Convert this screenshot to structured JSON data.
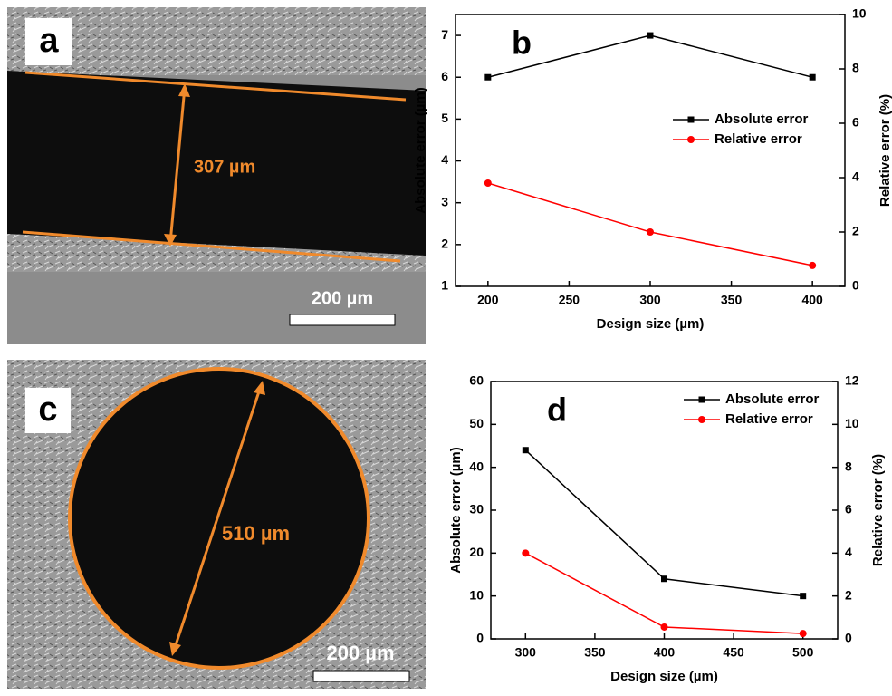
{
  "images": [
    {
      "label": "a",
      "measurement": "307 µm",
      "scale_bar": "200 µm"
    },
    {
      "label": "c",
      "measurement": "510 µm",
      "scale_bar": "200 µm"
    }
  ],
  "chart_data": [
    {
      "type": "line",
      "panel_label": "b",
      "x_label": "Design size (µm)",
      "y_label": "Absolute error (µm)",
      "y2_label": "Relative error (%)",
      "x": [
        200,
        300,
        400
      ],
      "xlim": [
        180,
        420
      ],
      "xticks": [
        200,
        250,
        300,
        350,
        400
      ],
      "ylim": [
        1,
        7.5
      ],
      "yticks": [
        1,
        2,
        3,
        4,
        5,
        6,
        7
      ],
      "y2lim": [
        0,
        10
      ],
      "y2ticks": [
        0,
        2,
        4,
        6,
        8,
        10
      ],
      "legend": "right",
      "series": [
        {
          "name": "Absolute error",
          "color": "#000000",
          "marker": "square",
          "values": [
            6,
            7,
            6
          ]
        },
        {
          "name": "Relative error",
          "color": "#ff0000",
          "marker": "circle",
          "axis": "y2",
          "values": [
            3.8,
            2.0,
            0.77
          ]
        }
      ]
    },
    {
      "type": "line",
      "panel_label": "d",
      "x_label": "Design size (µm)",
      "y_label": "Absolute error (µm)",
      "y2_label": "Relative error (%)",
      "x": [
        300,
        400,
        500
      ],
      "xlim": [
        275,
        525
      ],
      "xticks": [
        300,
        350,
        400,
        450,
        500
      ],
      "ylim": [
        0,
        60
      ],
      "yticks": [
        0,
        10,
        20,
        30,
        40,
        50,
        60
      ],
      "y2lim": [
        0,
        12
      ],
      "y2ticks": [
        0,
        2,
        4,
        6,
        8,
        10,
        12
      ],
      "legend": "top right",
      "series": [
        {
          "name": "Absolute error",
          "color": "#000000",
          "marker": "square",
          "values": [
            44,
            14,
            10
          ]
        },
        {
          "name": "Relative error",
          "color": "#ff0000",
          "marker": "circle",
          "axis": "y2",
          "values": [
            4.0,
            0.55,
            0.25
          ]
        }
      ]
    }
  ]
}
